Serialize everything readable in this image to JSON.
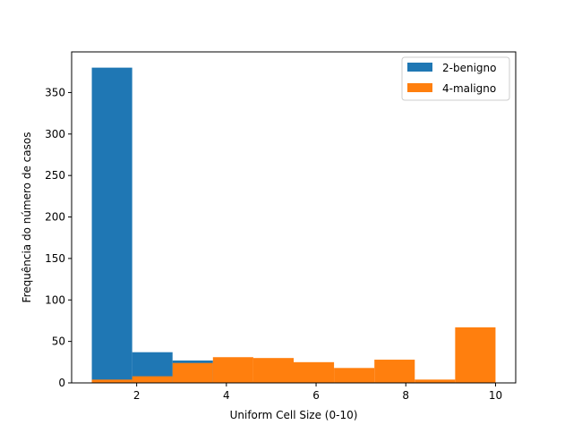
{
  "chart_data": {
    "type": "bar",
    "xlabel": "Uniform Cell Size (0-10)",
    "ylabel": "Frequência do número de casos",
    "xlim": [
      0.55,
      10.45
    ],
    "ylim": [
      0,
      399
    ],
    "x_ticks": [
      2,
      4,
      6,
      8,
      10
    ],
    "y_ticks": [
      0,
      50,
      100,
      150,
      200,
      250,
      300,
      350
    ],
    "legend_position": "top-right",
    "series": [
      {
        "name": "2-benigno",
        "color": "#1f77b4",
        "bins": [
          {
            "x0": 1.0,
            "x1": 1.9,
            "value": 380
          },
          {
            "x0": 1.9,
            "x1": 2.8,
            "value": 37
          },
          {
            "x0": 2.8,
            "x1": 3.7,
            "value": 27
          },
          {
            "x0": 3.7,
            "x1": 4.6,
            "value": 2
          },
          {
            "x0": 4.6,
            "x1": 5.5,
            "value": 0
          },
          {
            "x0": 5.5,
            "x1": 6.4,
            "value": 2
          },
          {
            "x0": 6.4,
            "x1": 7.3,
            "value": 0
          },
          {
            "x0": 7.3,
            "x1": 8.2,
            "value": 1
          },
          {
            "x0": 8.2,
            "x1": 9.1,
            "value": 0
          },
          {
            "x0": 9.1,
            "x1": 10.0,
            "value": 1
          }
        ]
      },
      {
        "name": "4-maligno",
        "color": "#ff7f0e",
        "bins": [
          {
            "x0": 1.0,
            "x1": 1.9,
            "value": 4
          },
          {
            "x0": 1.9,
            "x1": 2.8,
            "value": 8
          },
          {
            "x0": 2.8,
            "x1": 3.7,
            "value": 24
          },
          {
            "x0": 3.7,
            "x1": 4.6,
            "value": 31
          },
          {
            "x0": 4.6,
            "x1": 5.5,
            "value": 30
          },
          {
            "x0": 5.5,
            "x1": 6.4,
            "value": 25
          },
          {
            "x0": 6.4,
            "x1": 7.3,
            "value": 18
          },
          {
            "x0": 7.3,
            "x1": 8.2,
            "value": 28
          },
          {
            "x0": 8.2,
            "x1": 9.1,
            "value": 4
          },
          {
            "x0": 9.1,
            "x1": 10.0,
            "value": 67
          }
        ]
      }
    ]
  }
}
